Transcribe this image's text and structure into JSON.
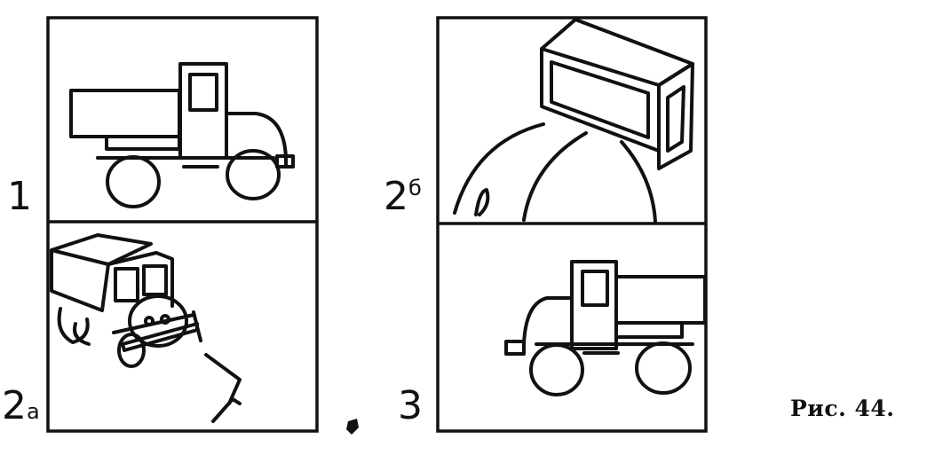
{
  "labels": {
    "panel_1": "1",
    "panel_2a_num": "2",
    "panel_2a_sub": "а",
    "panel_2b_num": "2",
    "panel_2b_sub": "б",
    "panel_3": "3"
  },
  "caption": "Рис. 44.",
  "icons": {
    "truck_side": "truck-side-view-icon",
    "truck_3d": "truck-perspective-icon",
    "cabin_detail": "cabin-closeup-icon",
    "truck_mirrored": "truck-mirrored-icon"
  },
  "colors": {
    "ink": "#111111",
    "paper": "#ffffff"
  }
}
